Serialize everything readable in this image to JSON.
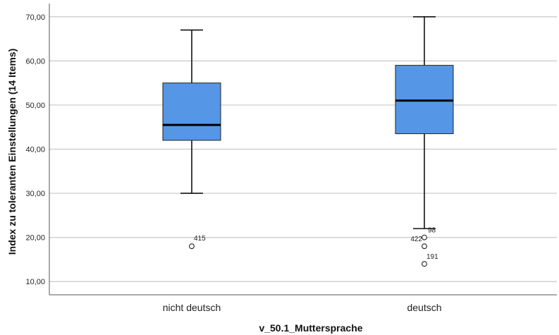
{
  "chart_data": {
    "type": "boxplot",
    "xlabel": "v_50.1_Muttersprache",
    "ylabel": "Index zu toleranten Einstellungen (14 Items)",
    "ylim": [
      7,
      73
    ],
    "yticks": [
      "10,00",
      "20,00",
      "30,00",
      "40,00",
      "50,00",
      "60,00",
      "70,00"
    ],
    "ytick_values": [
      10,
      20,
      30,
      40,
      50,
      60,
      70
    ],
    "grid": true,
    "box_color": "#5596e6",
    "categories": [
      "nicht deutsch",
      "deutsch"
    ],
    "boxes": [
      {
        "category": "nicht deutsch",
        "whisker_low": 30,
        "q1": 42,
        "median": 45.5,
        "q3": 55,
        "whisker_high": 67,
        "outliers": [
          {
            "value": 18,
            "label": "415"
          }
        ]
      },
      {
        "category": "deutsch",
        "whisker_low": 22,
        "q1": 43.5,
        "median": 51,
        "q3": 59,
        "whisker_high": 70,
        "outliers": [
          {
            "value": 20,
            "label": "98"
          },
          {
            "value": 18,
            "label": "422"
          },
          {
            "value": 14,
            "label": "191"
          }
        ]
      }
    ]
  }
}
